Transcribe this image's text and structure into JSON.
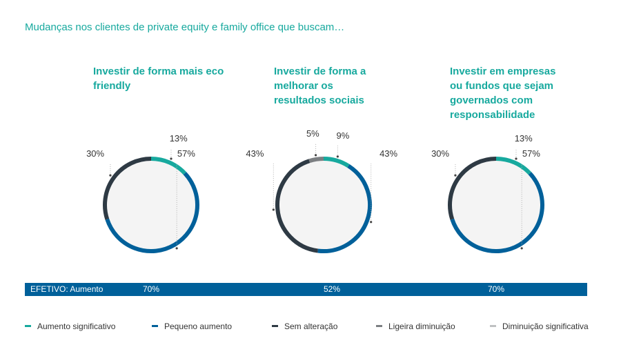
{
  "title": "Mudanças nos clientes de private equity e family office que buscam…",
  "colors": {
    "aumento_significativo": "#17a99e",
    "pequeno_aumento": "#00609a",
    "sem_alteracao": "#2e3a44",
    "ligeira_diminuicao": "#7c7f82",
    "diminuicao_significativa": "#bfc1c2",
    "title": "#17a99e",
    "donut_center": "#f4f4f4"
  },
  "chart_data": [
    {
      "type": "pie",
      "title": "Investir de forma mais eco friendly",
      "slices": [
        {
          "category": "Aumento significativo",
          "value": 13,
          "label": "13%"
        },
        {
          "category": "Pequeno aumento",
          "value": 57,
          "label": "57%"
        },
        {
          "category": "Sem alteração",
          "value": 30,
          "label": "30%"
        }
      ],
      "efetivo": "70%"
    },
    {
      "type": "pie",
      "title": "Investir de forma a melhorar os resultados sociais",
      "slices": [
        {
          "category": "Aumento significativo",
          "value": 9,
          "label": "9%"
        },
        {
          "category": "Pequeno aumento",
          "value": 43,
          "label": "43%"
        },
        {
          "category": "Sem alteração",
          "value": 43,
          "label": "43%"
        },
        {
          "category": "Ligeira diminuição",
          "value": 5,
          "label": "5%"
        }
      ],
      "efetivo": "52%"
    },
    {
      "type": "pie",
      "title": "Investir em empresas ou fundos que sejam governados com responsabilidade",
      "slices": [
        {
          "category": "Aumento significativo",
          "value": 13,
          "label": "13%"
        },
        {
          "category": "Pequeno aumento",
          "value": 57,
          "label": "57%"
        },
        {
          "category": "Sem alteração",
          "value": 30,
          "label": "30%"
        }
      ],
      "efetivo": "70%"
    }
  ],
  "efetivo_label": "EFETIVO: Aumento",
  "legend": [
    {
      "label": "Aumento significativo",
      "color": "#17a99e"
    },
    {
      "label": "Pequeno aumento",
      "color": "#00609a"
    },
    {
      "label": "Sem alteração",
      "color": "#2e3a44"
    },
    {
      "label": "Ligeira diminuição",
      "color": "#7c7f82"
    },
    {
      "label": "Diminuição significativa",
      "color": "#bfc1c2"
    }
  ]
}
